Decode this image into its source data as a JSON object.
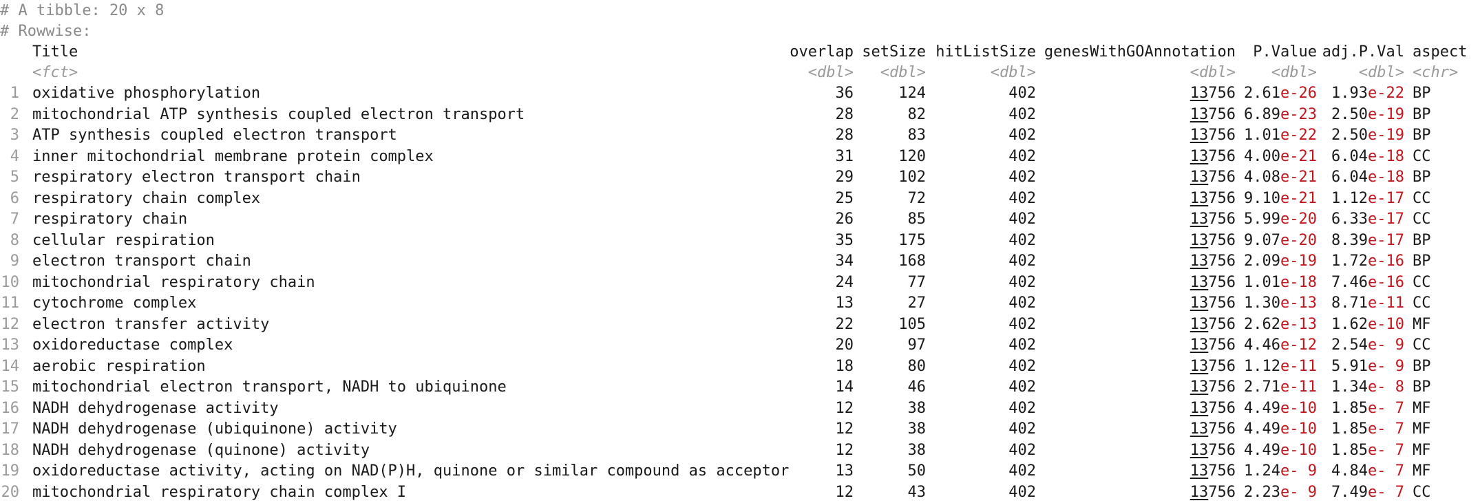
{
  "header": {
    "tibble_line": "# A tibble: 20 x 8",
    "rowwise_line": "# Rowwise:"
  },
  "columns": [
    {
      "name": "Title",
      "type": "<fct>"
    },
    {
      "name": "overlap",
      "type": "<dbl>"
    },
    {
      "name": "setSize",
      "type": "<dbl>"
    },
    {
      "name": "hitListSize",
      "type": "<dbl>"
    },
    {
      "name": "genesWithGOAnnotation",
      "type": "<dbl>"
    },
    {
      "name": "P.Value",
      "type": "<dbl>"
    },
    {
      "name": "adj.P.Val",
      "type": "<dbl>"
    },
    {
      "name": "aspect",
      "type": "<chr>"
    }
  ],
  "rows": [
    {
      "n": "1",
      "title": "oxidative phosphorylation",
      "overlap": "36",
      "setSize": "124",
      "hitListSize": "402",
      "genes_hi": "13",
      "genes_lo": "756",
      "pval_m": "2.61",
      "pval_e": "e-26",
      "adjp_m": "1.93",
      "adjp_e": "e-22",
      "aspect": "BP"
    },
    {
      "n": "2",
      "title": "mitochondrial ATP synthesis coupled electron transport",
      "overlap": "28",
      "setSize": "82",
      "hitListSize": "402",
      "genes_hi": "13",
      "genes_lo": "756",
      "pval_m": "6.89",
      "pval_e": "e-23",
      "adjp_m": "2.50",
      "adjp_e": "e-19",
      "aspect": "BP"
    },
    {
      "n": "3",
      "title": "ATP synthesis coupled electron transport",
      "overlap": "28",
      "setSize": "83",
      "hitListSize": "402",
      "genes_hi": "13",
      "genes_lo": "756",
      "pval_m": "1.01",
      "pval_e": "e-22",
      "adjp_m": "2.50",
      "adjp_e": "e-19",
      "aspect": "BP"
    },
    {
      "n": "4",
      "title": "inner mitochondrial membrane protein complex",
      "overlap": "31",
      "setSize": "120",
      "hitListSize": "402",
      "genes_hi": "13",
      "genes_lo": "756",
      "pval_m": "4.00",
      "pval_e": "e-21",
      "adjp_m": "6.04",
      "adjp_e": "e-18",
      "aspect": "CC"
    },
    {
      "n": "5",
      "title": "respiratory electron transport chain",
      "overlap": "29",
      "setSize": "102",
      "hitListSize": "402",
      "genes_hi": "13",
      "genes_lo": "756",
      "pval_m": "4.08",
      "pval_e": "e-21",
      "adjp_m": "6.04",
      "adjp_e": "e-18",
      "aspect": "BP"
    },
    {
      "n": "6",
      "title": "respiratory chain complex",
      "overlap": "25",
      "setSize": "72",
      "hitListSize": "402",
      "genes_hi": "13",
      "genes_lo": "756",
      "pval_m": "9.10",
      "pval_e": "e-21",
      "adjp_m": "1.12",
      "adjp_e": "e-17",
      "aspect": "CC"
    },
    {
      "n": "7",
      "title": "respiratory chain",
      "overlap": "26",
      "setSize": "85",
      "hitListSize": "402",
      "genes_hi": "13",
      "genes_lo": "756",
      "pval_m": "5.99",
      "pval_e": "e-20",
      "adjp_m": "6.33",
      "adjp_e": "e-17",
      "aspect": "CC"
    },
    {
      "n": "8",
      "title": "cellular respiration",
      "overlap": "35",
      "setSize": "175",
      "hitListSize": "402",
      "genes_hi": "13",
      "genes_lo": "756",
      "pval_m": "9.07",
      "pval_e": "e-20",
      "adjp_m": "8.39",
      "adjp_e": "e-17",
      "aspect": "BP"
    },
    {
      "n": "9",
      "title": "electron transport chain",
      "overlap": "34",
      "setSize": "168",
      "hitListSize": "402",
      "genes_hi": "13",
      "genes_lo": "756",
      "pval_m": "2.09",
      "pval_e": "e-19",
      "adjp_m": "1.72",
      "adjp_e": "e-16",
      "aspect": "BP"
    },
    {
      "n": "10",
      "title": "mitochondrial respiratory chain",
      "overlap": "24",
      "setSize": "77",
      "hitListSize": "402",
      "genes_hi": "13",
      "genes_lo": "756",
      "pval_m": "1.01",
      "pval_e": "e-18",
      "adjp_m": "7.46",
      "adjp_e": "e-16",
      "aspect": "CC"
    },
    {
      "n": "11",
      "title": "cytochrome complex",
      "overlap": "13",
      "setSize": "27",
      "hitListSize": "402",
      "genes_hi": "13",
      "genes_lo": "756",
      "pval_m": "1.30",
      "pval_e": "e-13",
      "adjp_m": "8.71",
      "adjp_e": "e-11",
      "aspect": "CC"
    },
    {
      "n": "12",
      "title": "electron transfer activity",
      "overlap": "22",
      "setSize": "105",
      "hitListSize": "402",
      "genes_hi": "13",
      "genes_lo": "756",
      "pval_m": "2.62",
      "pval_e": "e-13",
      "adjp_m": "1.62",
      "adjp_e": "e-10",
      "aspect": "MF"
    },
    {
      "n": "13",
      "title": "oxidoreductase complex",
      "overlap": "20",
      "setSize": "97",
      "hitListSize": "402",
      "genes_hi": "13",
      "genes_lo": "756",
      "pval_m": "4.46",
      "pval_e": "e-12",
      "adjp_m": "2.54",
      "adjp_e": "e- 9",
      "aspect": "CC"
    },
    {
      "n": "14",
      "title": "aerobic respiration",
      "overlap": "18",
      "setSize": "80",
      "hitListSize": "402",
      "genes_hi": "13",
      "genes_lo": "756",
      "pval_m": "1.12",
      "pval_e": "e-11",
      "adjp_m": "5.91",
      "adjp_e": "e- 9",
      "aspect": "BP"
    },
    {
      "n": "15",
      "title": "mitochondrial electron transport, NADH to ubiquinone",
      "overlap": "14",
      "setSize": "46",
      "hitListSize": "402",
      "genes_hi": "13",
      "genes_lo": "756",
      "pval_m": "2.71",
      "pval_e": "e-11",
      "adjp_m": "1.34",
      "adjp_e": "e- 8",
      "aspect": "BP"
    },
    {
      "n": "16",
      "title": "NADH dehydrogenase activity",
      "overlap": "12",
      "setSize": "38",
      "hitListSize": "402",
      "genes_hi": "13",
      "genes_lo": "756",
      "pval_m": "4.49",
      "pval_e": "e-10",
      "adjp_m": "1.85",
      "adjp_e": "e- 7",
      "aspect": "MF"
    },
    {
      "n": "17",
      "title": "NADH dehydrogenase (ubiquinone) activity",
      "overlap": "12",
      "setSize": "38",
      "hitListSize": "402",
      "genes_hi": "13",
      "genes_lo": "756",
      "pval_m": "4.49",
      "pval_e": "e-10",
      "adjp_m": "1.85",
      "adjp_e": "e- 7",
      "aspect": "MF"
    },
    {
      "n": "18",
      "title": "NADH dehydrogenase (quinone) activity",
      "overlap": "12",
      "setSize": "38",
      "hitListSize": "402",
      "genes_hi": "13",
      "genes_lo": "756",
      "pval_m": "4.49",
      "pval_e": "e-10",
      "adjp_m": "1.85",
      "adjp_e": "e- 7",
      "aspect": "MF"
    },
    {
      "n": "19",
      "title": "oxidoreductase activity, acting on NAD(P)H, quinone or similar compound as acceptor",
      "overlap": "13",
      "setSize": "50",
      "hitListSize": "402",
      "genes_hi": "13",
      "genes_lo": "756",
      "pval_m": "1.24",
      "pval_e": "e- 9",
      "adjp_m": "4.84",
      "adjp_e": "e- 7",
      "aspect": "MF"
    },
    {
      "n": "20",
      "title": "mitochondrial respiratory chain complex I",
      "overlap": "12",
      "setSize": "43",
      "hitListSize": "402",
      "genes_hi": "13",
      "genes_lo": "756",
      "pval_m": "2.23",
      "pval_e": "e- 9",
      "adjp_m": "7.49",
      "adjp_e": "e- 7",
      "aspect": "CC"
    }
  ],
  "colors": {
    "text": "#1a1a1a",
    "meta": "#8a8a8a",
    "exponent": "#c0161e"
  }
}
